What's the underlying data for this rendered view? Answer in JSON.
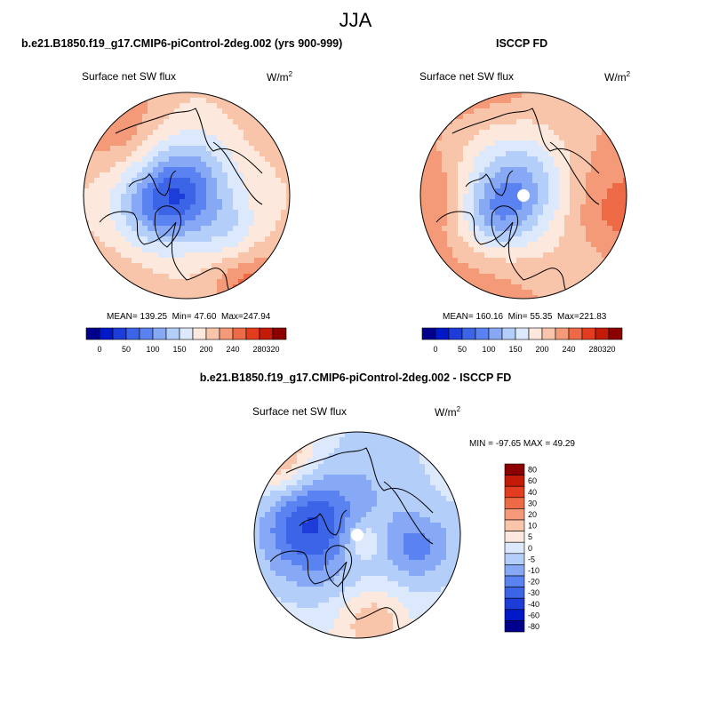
{
  "season": "JJA",
  "chart_data": [
    {
      "type": "heatmap",
      "title": "b.e21.B1850.f19_g17.CMIP6-piControl-2deg.002 (yrs 900-999)",
      "subtitle_left": "Surface net SW flux",
      "units": "W/m",
      "units_sup": "2",
      "stats": {
        "mean_label": "MEAN=",
        "mean": "139.25",
        "min_label": "Min=",
        "min": "47.60",
        "max_label": "Max=",
        "max": "247.94"
      },
      "has_pole_hole": false,
      "colorbar": {
        "orientation": "horizontal",
        "colors": [
          "#00008c",
          "#0018c8",
          "#1e3cd8",
          "#3c64e6",
          "#5a82f0",
          "#86a8f5",
          "#b4cefa",
          "#dce8fc",
          "#fce8dc",
          "#f8c4aa",
          "#f49a78",
          "#ee6a46",
          "#e43c1e",
          "#c41a08",
          "#8c0000"
        ],
        "tick_labels": [
          "0",
          "50",
          "100",
          "150",
          "200",
          "240",
          "280",
          "320"
        ]
      }
    },
    {
      "type": "heatmap",
      "title": "ISCCP FD",
      "subtitle_left": "Surface net SW flux",
      "units": "W/m",
      "units_sup": "2",
      "stats": {
        "mean_label": "MEAN=",
        "mean": "160.16",
        "min_label": "Min=",
        "min": "55.35",
        "max_label": "Max=",
        "max": "221.83"
      },
      "has_pole_hole": true,
      "colorbar": {
        "orientation": "horizontal",
        "colors": [
          "#00008c",
          "#0018c8",
          "#1e3cd8",
          "#3c64e6",
          "#5a82f0",
          "#86a8f5",
          "#b4cefa",
          "#dce8fc",
          "#fce8dc",
          "#f8c4aa",
          "#f49a78",
          "#ee6a46",
          "#e43c1e",
          "#c41a08",
          "#8c0000"
        ],
        "tick_labels": [
          "0",
          "50",
          "100",
          "150",
          "200",
          "240",
          "280",
          "320"
        ]
      }
    },
    {
      "type": "heatmap",
      "title": "b.e21.B1850.f19_g17.CMIP6-piControl-2deg.002 - ISCCP FD",
      "subtitle_left": "Surface net SW flux",
      "units": "W/m",
      "units_sup": "2",
      "stats": {
        "min_label": "MIN =",
        "min": "-97.65",
        "max_label": "MAX =",
        "max": "49.29"
      },
      "has_pole_hole": true,
      "colorbar": {
        "orientation": "vertical",
        "colors": [
          "#8c0000",
          "#c41a08",
          "#e43c1e",
          "#ee6a46",
          "#f49a78",
          "#f8c4aa",
          "#fce8dc",
          "#dce8fc",
          "#b4cefa",
          "#86a8f5",
          "#5a82f0",
          "#3c64e6",
          "#1e3cd8",
          "#0018c8",
          "#00008c"
        ],
        "tick_labels": [
          "80",
          "60",
          "40",
          "30",
          "20",
          "10",
          "5",
          "0",
          "-5",
          "-10",
          "-20",
          "-30",
          "-40",
          "-60",
          "-80"
        ]
      }
    }
  ]
}
